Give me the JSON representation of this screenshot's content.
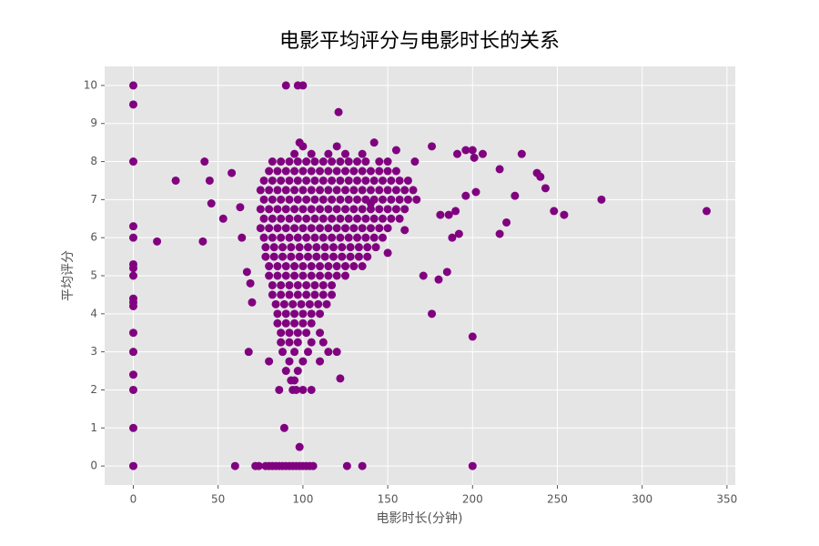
{
  "chart_data": {
    "type": "scatter",
    "title": "电影平均评分与电影时长的关系",
    "x_label": "电影时长(分钟)",
    "y_label": "平均评分",
    "color": "#800080",
    "grid": true,
    "xlim": [
      -16.9,
      354.9
    ],
    "ylim": [
      -0.5,
      10.5
    ],
    "xticks": [
      0,
      50,
      100,
      150,
      200,
      250,
      300,
      350
    ],
    "yticks": [
      0,
      1,
      2,
      3,
      4,
      5,
      6,
      7,
      8,
      9,
      10
    ],
    "x": [
      95,
      105,
      115,
      125,
      135,
      82,
      87,
      92,
      97,
      102,
      107,
      112,
      117,
      122,
      127,
      132,
      137,
      145,
      150,
      80,
      85,
      90,
      95,
      100,
      105,
      110,
      115,
      120,
      125,
      130,
      135,
      140,
      145,
      150,
      155,
      77,
      82,
      87,
      92,
      97,
      102,
      107,
      112,
      117,
      122,
      127,
      132,
      137,
      142,
      147,
      152,
      157,
      162,
      75,
      80,
      85,
      90,
      95,
      100,
      105,
      110,
      115,
      120,
      125,
      130,
      135,
      140,
      145,
      150,
      155,
      160,
      165,
      77,
      82,
      87,
      92,
      97,
      102,
      107,
      112,
      117,
      122,
      127,
      132,
      137,
      142,
      147,
      152,
      157,
      162,
      167,
      75,
      80,
      85,
      90,
      95,
      100,
      105,
      110,
      115,
      120,
      125,
      130,
      135,
      140,
      145,
      150,
      155,
      160,
      77,
      82,
      87,
      92,
      97,
      102,
      107,
      112,
      117,
      122,
      127,
      132,
      137,
      142,
      147,
      152,
      157,
      75,
      80,
      85,
      90,
      95,
      100,
      105,
      110,
      115,
      120,
      125,
      130,
      135,
      140,
      145,
      150,
      77,
      82,
      87,
      92,
      97,
      102,
      107,
      112,
      117,
      122,
      127,
      132,
      137,
      142,
      147,
      78,
      83,
      88,
      93,
      98,
      103,
      108,
      113,
      118,
      123,
      128,
      133,
      138,
      143,
      78,
      83,
      88,
      93,
      98,
      103,
      108,
      113,
      118,
      123,
      128,
      133,
      138,
      80,
      85,
      90,
      95,
      100,
      105,
      110,
      115,
      120,
      125,
      130,
      135,
      80,
      85,
      90,
      95,
      100,
      105,
      110,
      115,
      120,
      125,
      82,
      87,
      92,
      97,
      102,
      107,
      112,
      117,
      82,
      87,
      92,
      97,
      102,
      107,
      112,
      117,
      84,
      89,
      94,
      99,
      104,
      109,
      114,
      85,
      90,
      95,
      100,
      105,
      110,
      85,
      90,
      95,
      100,
      105,
      87,
      92,
      97,
      102,
      110,
      87,
      92,
      97,
      105,
      112,
      88,
      95,
      103,
      115,
      120,
      80,
      92,
      100,
      110,
      90,
      97,
      93,
      95,
      86,
      94,
      96,
      100,
      0,
      0,
      0,
      0,
      0,
      0,
      0,
      0,
      0,
      0,
      0,
      0,
      0,
      0,
      0,
      0,
      0,
      14,
      25,
      41,
      42,
      45,
      46,
      53,
      58,
      60,
      63,
      64,
      67,
      68,
      69,
      70,
      72,
      74,
      90,
      97,
      100,
      121,
      89,
      98,
      105,
      122,
      126,
      135,
      200,
      200,
      176,
      171,
      185,
      180,
      248,
      254,
      276,
      338,
      240,
      243,
      238,
      229,
      225,
      220,
      216,
      216,
      206,
      201,
      200,
      196,
      191,
      202,
      196,
      192,
      190,
      188,
      186,
      181,
      176,
      166,
      160,
      150,
      140,
      98,
      100,
      120,
      142,
      155,
      78,
      80,
      82,
      84,
      86,
      88,
      90,
      92,
      94,
      96,
      98,
      100,
      102,
      104,
      106
    ],
    "values": [
      8.2,
      8.2,
      8.2,
      8.2,
      8.2,
      8,
      8,
      8,
      8,
      8,
      8,
      8,
      8,
      8,
      8,
      8,
      8,
      8,
      8,
      7.75,
      7.75,
      7.75,
      7.75,
      7.75,
      7.75,
      7.75,
      7.75,
      7.75,
      7.75,
      7.75,
      7.75,
      7.75,
      7.75,
      7.75,
      7.75,
      7.5,
      7.5,
      7.5,
      7.5,
      7.5,
      7.5,
      7.5,
      7.5,
      7.5,
      7.5,
      7.5,
      7.5,
      7.5,
      7.5,
      7.5,
      7.5,
      7.5,
      7.5,
      7.25,
      7.25,
      7.25,
      7.25,
      7.25,
      7.25,
      7.25,
      7.25,
      7.25,
      7.25,
      7.25,
      7.25,
      7.25,
      7.25,
      7.25,
      7.25,
      7.25,
      7.25,
      7.25,
      7,
      7,
      7,
      7,
      7,
      7,
      7,
      7,
      7,
      7,
      7,
      7,
      7,
      7,
      7,
      7,
      7,
      7,
      7,
      6.75,
      6.75,
      6.75,
      6.75,
      6.75,
      6.75,
      6.75,
      6.75,
      6.75,
      6.75,
      6.75,
      6.75,
      6.75,
      6.75,
      6.75,
      6.75,
      6.75,
      6.75,
      6.5,
      6.5,
      6.5,
      6.5,
      6.5,
      6.5,
      6.5,
      6.5,
      6.5,
      6.5,
      6.5,
      6.5,
      6.5,
      6.5,
      6.5,
      6.5,
      6.5,
      6.25,
      6.25,
      6.25,
      6.25,
      6.25,
      6.25,
      6.25,
      6.25,
      6.25,
      6.25,
      6.25,
      6.25,
      6.25,
      6.25,
      6.25,
      6.25,
      6,
      6,
      6,
      6,
      6,
      6,
      6,
      6,
      6,
      6,
      6,
      6,
      6,
      6,
      6,
      5.75,
      5.75,
      5.75,
      5.75,
      5.75,
      5.75,
      5.75,
      5.75,
      5.75,
      5.75,
      5.75,
      5.75,
      5.75,
      5.75,
      5.5,
      5.5,
      5.5,
      5.5,
      5.5,
      5.5,
      5.5,
      5.5,
      5.5,
      5.5,
      5.5,
      5.5,
      5.5,
      5.25,
      5.25,
      5.25,
      5.25,
      5.25,
      5.25,
      5.25,
      5.25,
      5.25,
      5.25,
      5.25,
      5.25,
      5,
      5,
      5,
      5,
      5,
      5,
      5,
      5,
      5,
      5,
      4.75,
      4.75,
      4.75,
      4.75,
      4.75,
      4.75,
      4.75,
      4.75,
      4.5,
      4.5,
      4.5,
      4.5,
      4.5,
      4.5,
      4.5,
      4.5,
      4.25,
      4.25,
      4.25,
      4.25,
      4.25,
      4.25,
      4.25,
      4,
      4,
      4,
      4,
      4,
      4,
      3.75,
      3.75,
      3.75,
      3.75,
      3.75,
      3.5,
      3.5,
      3.5,
      3.5,
      3.5,
      3.25,
      3.25,
      3.25,
      3.25,
      3.25,
      3,
      3,
      3,
      3,
      3,
      2.75,
      2.75,
      2.75,
      2.75,
      2.5,
      2.5,
      2.25,
      2.25,
      2,
      2,
      2,
      2,
      10,
      9.5,
      8,
      6.3,
      6,
      5.3,
      5.2,
      5,
      4.4,
      4.3,
      4.2,
      3.5,
      3,
      2.4,
      2,
      1,
      0,
      5.9,
      7.5,
      5.9,
      8,
      7.5,
      6.9,
      6.5,
      7.7,
      0,
      6.8,
      6,
      5.1,
      3,
      4.8,
      4.3,
      0,
      0,
      10,
      10,
      10,
      9.3,
      1,
      0.5,
      2,
      2.3,
      0,
      0,
      0,
      3.4,
      4,
      5,
      5.1,
      4.9,
      6.7,
      6.6,
      7,
      6.7,
      7.6,
      7.3,
      7.7,
      8.2,
      7.1,
      6.4,
      6.1,
      7.8,
      8.2,
      8.1,
      8.3,
      8.3,
      8.2,
      7.2,
      7.1,
      6.1,
      6.7,
      6,
      6.6,
      6.6,
      8.4,
      8,
      6.2,
      5.6,
      6.9,
      8.5,
      8.4,
      8.4,
      8.5,
      8.3,
      0,
      0,
      0,
      0,
      0,
      0,
      0,
      0,
      0,
      0,
      0,
      0,
      0,
      0,
      0
    ]
  }
}
